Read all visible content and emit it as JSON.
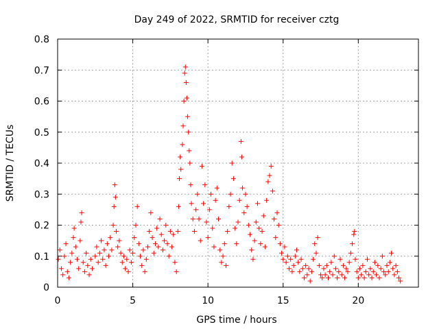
{
  "chart_data": {
    "type": "scatter",
    "title": "Day 249 of 2022, SRMTID for receiver cztg",
    "xlabel": "GPS time / hours",
    "ylabel": "SRMTID / TECUs",
    "xlim": [
      0,
      24
    ],
    "ylim": [
      0,
      0.8
    ],
    "xticks": [
      0,
      5,
      10,
      15,
      20
    ],
    "yticks": [
      0,
      0.1,
      0.2,
      0.3,
      0.4,
      0.5,
      0.6,
      0.7,
      0.8
    ],
    "xtick_labels": [
      "0",
      "5",
      "10",
      "15",
      "20"
    ],
    "ytick_labels": [
      "0",
      "0.1",
      "0.2",
      "0.3",
      "0.4",
      "0.5",
      "0.6",
      "0.7",
      "0.8"
    ],
    "grid": true,
    "marker": "plus",
    "color": "#ff0000",
    "series": [
      {
        "name": "SRMTID",
        "points": [
          [
            0.05,
            0.09
          ],
          [
            0.15,
            0.12
          ],
          [
            0.25,
            0.06
          ],
          [
            0.35,
            0.04
          ],
          [
            0.45,
            0.1
          ],
          [
            0.55,
            0.14
          ],
          [
            0.65,
            0.05
          ],
          [
            0.75,
            0.03
          ],
          [
            0.85,
            0.08
          ],
          [
            0.95,
            0.11
          ],
          [
            1.05,
            0.16
          ],
          [
            1.1,
            0.19
          ],
          [
            1.2,
            0.13
          ],
          [
            1.3,
            0.09
          ],
          [
            1.4,
            0.06
          ],
          [
            1.5,
            0.15
          ],
          [
            1.55,
            0.21
          ],
          [
            1.6,
            0.24
          ],
          [
            1.7,
            0.08
          ],
          [
            1.8,
            0.05
          ],
          [
            1.9,
            0.11
          ],
          [
            2.0,
            0.07
          ],
          [
            2.1,
            0.04
          ],
          [
            2.2,
            0.09
          ],
          [
            2.3,
            0.06
          ],
          [
            2.5,
            0.1
          ],
          [
            2.6,
            0.13
          ],
          [
            2.7,
            0.08
          ],
          [
            2.8,
            0.11
          ],
          [
            2.9,
            0.15
          ],
          [
            3.0,
            0.09
          ],
          [
            3.1,
            0.12
          ],
          [
            3.2,
            0.07
          ],
          [
            3.3,
            0.14
          ],
          [
            3.4,
            0.1
          ],
          [
            3.5,
            0.16
          ],
          [
            3.6,
            0.12
          ],
          [
            3.7,
            0.2
          ],
          [
            3.75,
            0.26
          ],
          [
            3.8,
            0.33
          ],
          [
            3.85,
            0.29
          ],
          [
            3.9,
            0.18
          ],
          [
            4.0,
            0.13
          ],
          [
            4.1,
            0.15
          ],
          [
            4.2,
            0.11
          ],
          [
            4.3,
            0.08
          ],
          [
            4.4,
            0.1
          ],
          [
            4.5,
            0.06
          ],
          [
            4.6,
            0.09
          ],
          [
            4.7,
            0.05
          ],
          [
            4.8,
            0.12
          ],
          [
            4.9,
            0.08
          ],
          [
            5.0,
            0.11
          ],
          [
            5.1,
            0.16
          ],
          [
            5.2,
            0.2
          ],
          [
            5.3,
            0.26
          ],
          [
            5.4,
            0.14
          ],
          [
            5.5,
            0.1
          ],
          [
            5.6,
            0.07
          ],
          [
            5.7,
            0.12
          ],
          [
            5.8,
            0.05
          ],
          [
            5.9,
            0.09
          ],
          [
            6.0,
            0.13
          ],
          [
            6.1,
            0.18
          ],
          [
            6.2,
            0.24
          ],
          [
            6.3,
            0.16
          ],
          [
            6.4,
            0.11
          ],
          [
            6.5,
            0.14
          ],
          [
            6.6,
            0.19
          ],
          [
            6.7,
            0.13
          ],
          [
            6.8,
            0.22
          ],
          [
            6.9,
            0.17
          ],
          [
            7.0,
            0.12
          ],
          [
            7.1,
            0.15
          ],
          [
            7.2,
            0.2
          ],
          [
            7.3,
            0.14
          ],
          [
            7.4,
            0.1
          ],
          [
            7.5,
            0.18
          ],
          [
            7.6,
            0.13
          ],
          [
            7.7,
            0.17
          ],
          [
            7.8,
            0.08
          ],
          [
            7.9,
            0.05
          ],
          [
            8.0,
            0.18
          ],
          [
            8.05,
            0.26
          ],
          [
            8.1,
            0.35
          ],
          [
            8.15,
            0.42
          ],
          [
            8.2,
            0.38
          ],
          [
            8.3,
            0.46
          ],
          [
            8.35,
            0.52
          ],
          [
            8.4,
            0.6
          ],
          [
            8.45,
            0.69
          ],
          [
            8.5,
            0.71
          ],
          [
            8.55,
            0.66
          ],
          [
            8.6,
            0.61
          ],
          [
            8.65,
            0.55
          ],
          [
            8.7,
            0.5
          ],
          [
            8.75,
            0.44
          ],
          [
            8.8,
            0.4
          ],
          [
            8.85,
            0.33
          ],
          [
            8.9,
            0.27
          ],
          [
            9.0,
            0.22
          ],
          [
            9.1,
            0.18
          ],
          [
            9.2,
            0.25
          ],
          [
            9.3,
            0.3
          ],
          [
            9.4,
            0.22
          ],
          [
            9.5,
            0.15
          ],
          [
            9.6,
            0.39
          ],
          [
            9.7,
            0.27
          ],
          [
            9.8,
            0.33
          ],
          [
            9.9,
            0.21
          ],
          [
            10.0,
            0.16
          ],
          [
            10.1,
            0.25
          ],
          [
            10.2,
            0.3
          ],
          [
            10.3,
            0.19
          ],
          [
            10.4,
            0.13
          ],
          [
            10.5,
            0.28
          ],
          [
            10.6,
            0.32
          ],
          [
            10.7,
            0.22
          ],
          [
            10.8,
            0.12
          ],
          [
            10.9,
            0.08
          ],
          [
            11.0,
            0.1
          ],
          [
            11.1,
            0.14
          ],
          [
            11.2,
            0.07
          ],
          [
            11.3,
            0.18
          ],
          [
            11.4,
            0.26
          ],
          [
            11.5,
            0.3
          ],
          [
            11.6,
            0.4
          ],
          [
            11.7,
            0.35
          ],
          [
            11.8,
            0.19
          ],
          [
            11.9,
            0.14
          ],
          [
            12.0,
            0.21
          ],
          [
            12.1,
            0.28
          ],
          [
            12.2,
            0.47
          ],
          [
            12.25,
            0.42
          ],
          [
            12.3,
            0.32
          ],
          [
            12.4,
            0.24
          ],
          [
            12.5,
            0.3
          ],
          [
            12.6,
            0.26
          ],
          [
            12.7,
            0.2
          ],
          [
            12.8,
            0.17
          ],
          [
            12.9,
            0.12
          ],
          [
            13.0,
            0.09
          ],
          [
            13.1,
            0.15
          ],
          [
            13.2,
            0.21
          ],
          [
            13.3,
            0.27
          ],
          [
            13.4,
            0.19
          ],
          [
            13.5,
            0.14
          ],
          [
            13.6,
            0.18
          ],
          [
            13.7,
            0.23
          ],
          [
            13.8,
            0.13
          ],
          [
            13.9,
            0.28
          ],
          [
            14.0,
            0.34
          ],
          [
            14.1,
            0.36
          ],
          [
            14.2,
            0.39
          ],
          [
            14.3,
            0.31
          ],
          [
            14.4,
            0.22
          ],
          [
            14.5,
            0.16
          ],
          [
            14.6,
            0.24
          ],
          [
            14.7,
            0.2
          ],
          [
            14.8,
            0.14
          ],
          [
            14.9,
            0.11
          ],
          [
            15.0,
            0.09
          ],
          [
            15.1,
            0.13
          ],
          [
            15.2,
            0.08
          ],
          [
            15.3,
            0.1
          ],
          [
            15.4,
            0.06
          ],
          [
            15.5,
            0.09
          ],
          [
            15.6,
            0.05
          ],
          [
            15.7,
            0.07
          ],
          [
            15.8,
            0.1
          ],
          [
            15.9,
            0.12
          ],
          [
            16.0,
            0.08
          ],
          [
            16.1,
            0.05
          ],
          [
            16.2,
            0.09
          ],
          [
            16.3,
            0.06
          ],
          [
            16.4,
            0.03
          ],
          [
            16.5,
            0.07
          ],
          [
            16.6,
            0.04
          ],
          [
            16.7,
            0.06
          ],
          [
            16.8,
            0.02
          ],
          [
            16.9,
            0.05
          ],
          [
            17.0,
            0.09
          ],
          [
            17.1,
            0.14
          ],
          [
            17.2,
            0.11
          ],
          [
            17.3,
            0.16
          ],
          [
            17.4,
            0.07
          ],
          [
            17.5,
            0.04
          ],
          [
            17.6,
            0.03
          ],
          [
            17.7,
            0.06
          ],
          [
            17.8,
            0.04
          ],
          [
            17.9,
            0.07
          ],
          [
            18.0,
            0.03
          ],
          [
            18.1,
            0.05
          ],
          [
            18.2,
            0.08
          ],
          [
            18.3,
            0.04
          ],
          [
            18.4,
            0.1
          ],
          [
            18.5,
            0.06
          ],
          [
            18.6,
            0.03
          ],
          [
            18.7,
            0.05
          ],
          [
            18.8,
            0.09
          ],
          [
            18.9,
            0.04
          ],
          [
            19.0,
            0.07
          ],
          [
            19.1,
            0.03
          ],
          [
            19.2,
            0.06
          ],
          [
            19.3,
            0.05
          ],
          [
            19.4,
            0.08
          ],
          [
            19.5,
            0.11
          ],
          [
            19.6,
            0.14
          ],
          [
            19.7,
            0.17
          ],
          [
            19.75,
            0.18
          ],
          [
            19.8,
            0.09
          ],
          [
            19.9,
            0.05
          ],
          [
            20.0,
            0.03
          ],
          [
            20.1,
            0.06
          ],
          [
            20.2,
            0.04
          ],
          [
            20.3,
            0.07
          ],
          [
            20.4,
            0.03
          ],
          [
            20.5,
            0.05
          ],
          [
            20.6,
            0.09
          ],
          [
            20.7,
            0.04
          ],
          [
            20.8,
            0.06
          ],
          [
            20.9,
            0.03
          ],
          [
            21.0,
            0.05
          ],
          [
            21.1,
            0.08
          ],
          [
            21.2,
            0.04
          ],
          [
            21.3,
            0.07
          ],
          [
            21.4,
            0.03
          ],
          [
            21.5,
            0.06
          ],
          [
            21.6,
            0.1
          ],
          [
            21.7,
            0.05
          ],
          [
            21.8,
            0.04
          ],
          [
            21.9,
            0.07
          ],
          [
            22.0,
            0.05
          ],
          [
            22.1,
            0.08
          ],
          [
            22.2,
            0.11
          ],
          [
            22.3,
            0.06
          ],
          [
            22.4,
            0.04
          ],
          [
            22.5,
            0.07
          ],
          [
            22.6,
            0.05
          ],
          [
            22.7,
            0.03
          ],
          [
            22.8,
            0.02
          ]
        ]
      }
    ]
  }
}
